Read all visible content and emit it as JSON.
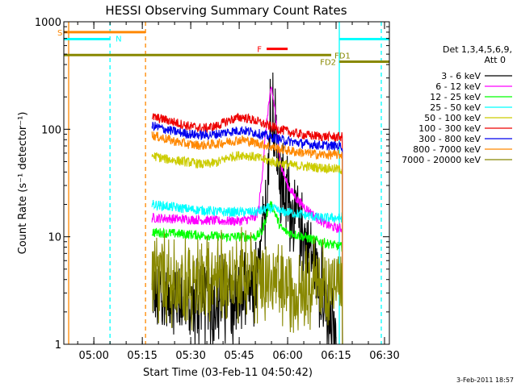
{
  "chart_data": {
    "type": "line",
    "title": "HESSI Observing Summary Count Rates",
    "xlabel": "Start Time (03-Feb-11 04:50:42)",
    "ylabel": "Count Rate (s⁻¹ detector⁻¹)",
    "ylog": true,
    "ylim": [
      1,
      1000
    ],
    "xlim_minutes": [
      290.7,
      391.5
    ],
    "x_ticks": [
      {
        "m": 300,
        "label": "05:00"
      },
      {
        "m": 315,
        "label": "05:15"
      },
      {
        "m": 330,
        "label": "05:30"
      },
      {
        "m": 345,
        "label": "05:45"
      },
      {
        "m": 360,
        "label": "06:00"
      },
      {
        "m": 375,
        "label": "06:15"
      },
      {
        "m": 390,
        "label": "06:30"
      }
    ],
    "y_ticks": [
      {
        "v": 1,
        "label": "1"
      },
      {
        "v": 10,
        "label": "10"
      },
      {
        "v": 100,
        "label": "100"
      },
      {
        "v": 1000,
        "label": "1000"
      }
    ],
    "legend": {
      "header": [
        "Det 1,3,4,5,6,9,",
        "Att 0"
      ],
      "placement": "right"
    },
    "series": [
      {
        "name": "3 - 6 keV",
        "color": "#000000",
        "x": [
          318,
          330,
          340,
          345,
          350,
          351,
          353,
          354,
          355,
          356,
          357,
          358,
          360,
          362,
          364,
          366,
          368,
          370,
          372,
          373,
          374,
          375
        ],
        "y": [
          3,
          2.4,
          2.6,
          2.6,
          3.3,
          4.5,
          15,
          60,
          160,
          110,
          60,
          32,
          20,
          15,
          12,
          9,
          6,
          3.5,
          2,
          1.5,
          1.2,
          1
        ]
      },
      {
        "name": "6 - 12 keV",
        "color": "#ff00ff",
        "x": [
          318,
          330,
          340,
          345,
          350,
          351,
          352,
          353,
          354,
          355,
          356,
          357,
          358,
          360,
          363,
          366,
          369,
          372,
          375,
          377
        ],
        "y": [
          15,
          14.5,
          14,
          14,
          15,
          18,
          35,
          80,
          160,
          240,
          160,
          80,
          45,
          30,
          22,
          18,
          15,
          13,
          12,
          12
        ]
      },
      {
        "name": "12 - 25 keV",
        "color": "#00ff00",
        "x": [
          318,
          330,
          340,
          345,
          350,
          352,
          353,
          354,
          355,
          356,
          357,
          358,
          360,
          365,
          370,
          377
        ],
        "y": [
          11,
          10.5,
          10,
          10,
          10,
          11,
          14,
          18,
          20,
          17,
          14,
          12,
          11,
          10,
          9,
          8
        ]
      },
      {
        "name": "25 - 50 keV",
        "color": "#00ffff",
        "x": [
          318,
          330,
          340,
          345,
          350,
          352,
          354,
          356,
          358,
          360,
          365,
          370,
          377
        ],
        "y": [
          20,
          18,
          17,
          17,
          17,
          17.5,
          18.5,
          18,
          17,
          17,
          16,
          15,
          15
        ]
      },
      {
        "name": "50 - 100 keV",
        "color": "#cccc00",
        "x": [
          318,
          322,
          326,
          330,
          334,
          338,
          342,
          346,
          350,
          354,
          358,
          362,
          366,
          370,
          374,
          377
        ],
        "y": [
          57,
          53,
          51,
          49,
          47,
          49,
          55,
          58,
          55,
          51,
          48,
          46,
          45,
          44,
          43,
          42
        ]
      },
      {
        "name": "100 - 300 keV",
        "color": "#ee0000",
        "x": [
          318,
          322,
          326,
          330,
          334,
          338,
          342,
          346,
          350,
          354,
          358,
          362,
          366,
          370,
          374,
          377
        ],
        "y": [
          130,
          123,
          114,
          106,
          102,
          107,
          122,
          130,
          120,
          108,
          99,
          92,
          88,
          86,
          85,
          85
        ]
      },
      {
        "name": "300 - 800 keV",
        "color": "#0000ee",
        "x": [
          318,
          322,
          326,
          330,
          334,
          338,
          342,
          346,
          350,
          354,
          358,
          362,
          366,
          370,
          374,
          377
        ],
        "y": [
          108,
          100,
          94,
          90,
          88,
          90,
          95,
          98,
          93,
          86,
          80,
          76,
          73,
          71,
          70,
          70
        ]
      },
      {
        "name": "800 - 7000 keV",
        "color": "#ff8800",
        "x": [
          318,
          322,
          326,
          330,
          334,
          338,
          342,
          346,
          350,
          354,
          358,
          362,
          366,
          370,
          374,
          377
        ],
        "y": [
          88,
          82,
          76,
          72,
          71,
          73,
          77,
          80,
          75,
          70,
          65,
          62,
          60,
          58,
          58,
          58
        ]
      },
      {
        "name": "7000 - 20000 keV",
        "color": "#888800",
        "x": [
          318,
          322,
          326,
          330,
          334,
          338,
          342,
          346,
          350,
          354,
          358,
          362,
          366,
          370,
          374,
          377
        ],
        "y": [
          4.2,
          4.0,
          3.7,
          3.4,
          3.6,
          4.0,
          4.3,
          4.4,
          4.2,
          3.9,
          3.6,
          3.5,
          3.5,
          3.6,
          3.7,
          3.8
        ]
      }
    ],
    "flag_bars": [
      {
        "label": "S",
        "color": "#ff8800",
        "y": 800,
        "x1": 290.7,
        "x2": 316
      },
      {
        "label": "N",
        "color": "#00ffff",
        "y": 690,
        "x1": 290.7,
        "x2": 305
      },
      {
        "label": "F",
        "color": "#ff0000",
        "y": 560,
        "x1": 353.5,
        "x2": 360
      },
      {
        "label": "FD1",
        "color": "#888800",
        "y": 490,
        "x1": 290.7,
        "x2": 373.5
      },
      {
        "label": "FD2",
        "color": "#888800",
        "y": 425,
        "x1": 376,
        "x2": 391.5
      },
      {
        "label": "",
        "color": "#00ffff",
        "y": 690,
        "x1": 376,
        "x2": 391.5
      }
    ],
    "vertical_markers": [
      {
        "m": 292.2,
        "color": "#ff8800",
        "dashed": false
      },
      {
        "m": 305.0,
        "color": "#00ffff",
        "dashed": true
      },
      {
        "m": 316.0,
        "color": "#ff8800",
        "dashed": true
      },
      {
        "m": 376.0,
        "color": "#00ffff",
        "dashed": false
      },
      {
        "m": 389.0,
        "color": "#00ffff",
        "dashed": true
      }
    ]
  },
  "footer": {
    "timestamp": "3-Feb-2011 18:57"
  }
}
